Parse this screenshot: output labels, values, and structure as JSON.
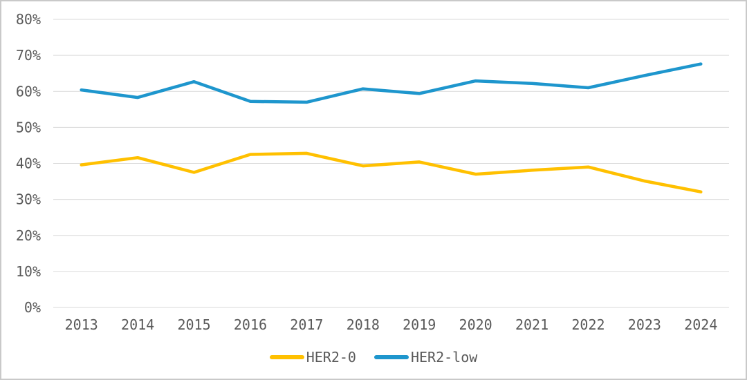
{
  "chart_data": {
    "type": "line",
    "title": "",
    "xlabel": "",
    "ylabel": "",
    "x": [
      "2013",
      "2014",
      "2015",
      "2016",
      "2017",
      "2018",
      "2019",
      "2020",
      "2021",
      "2022",
      "2023",
      "2024"
    ],
    "series": [
      {
        "name": "HER2-0",
        "color": "#FFC000",
        "values": [
          39.6,
          41.6,
          37.5,
          42.5,
          42.8,
          39.3,
          40.4,
          37.0,
          38.1,
          39.0,
          35.1,
          32.1
        ]
      },
      {
        "name": "HER2-low",
        "color": "#1E96CD",
        "values": [
          60.4,
          58.3,
          62.7,
          57.2,
          57.0,
          60.7,
          59.4,
          62.9,
          62.2,
          61.0,
          64.4,
          67.6
        ]
      }
    ],
    "ylim": [
      0,
      80
    ],
    "ytick_step": 10,
    "ytick_labels": [
      "0%",
      "10%",
      "20%",
      "30%",
      "40%",
      "50%",
      "60%",
      "70%",
      "80%"
    ],
    "grid": true,
    "legend_position": "bottom"
  },
  "style": {
    "grid_color": "#d9d9d9",
    "axis_text_color": "#595959",
    "background": "#ffffff",
    "border_color": "#c9c9c9"
  }
}
